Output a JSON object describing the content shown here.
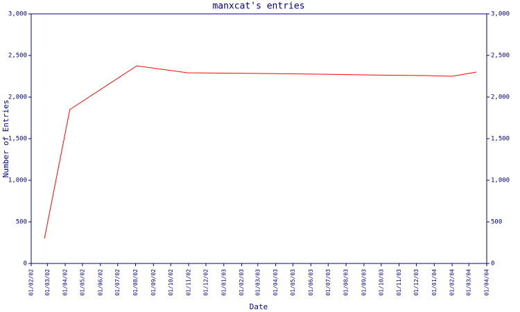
{
  "chart_data": {
    "type": "line",
    "title": "manxcat's entries",
    "x_label": "Date",
    "y_label": "Number of Entries",
    "x": [
      "2002-02-24",
      "2002-04-09",
      "2002-08-03",
      "2002-10-30",
      "2003-03-10",
      "2003-06-15",
      "2003-09-19",
      "2003-12-18",
      "2004-02-01",
      "2004-03-14"
    ],
    "series": [
      {
        "name": "manxcat",
        "color": "#ff0000",
        "values": [
          300,
          1850,
          2375,
          2292,
          2283,
          2275,
          2265,
          2258,
          2250,
          2300
        ]
      }
    ],
    "xlim": [
      "2002-02-01",
      "2004-04-01"
    ],
    "xticks": [
      {
        "value": "2002-02-01",
        "label": "01/02/02"
      },
      {
        "value": "2002-03-01",
        "label": "01/03/02"
      },
      {
        "value": "2002-04-01",
        "label": "01/04/02"
      },
      {
        "value": "2002-05-01",
        "label": "01/05/02"
      },
      {
        "value": "2002-06-01",
        "label": "01/06/02"
      },
      {
        "value": "2002-07-01",
        "label": "01/07/02"
      },
      {
        "value": "2002-08-01",
        "label": "01/08/02"
      },
      {
        "value": "2002-09-01",
        "label": "01/09/02"
      },
      {
        "value": "2002-10-01",
        "label": "01/10/02"
      },
      {
        "value": "2002-11-01",
        "label": "01/11/02"
      },
      {
        "value": "2002-12-01",
        "label": "01/12/02"
      },
      {
        "value": "2003-01-01",
        "label": "01/01/03"
      },
      {
        "value": "2003-02-01",
        "label": "01/02/03"
      },
      {
        "value": "2003-03-01",
        "label": "01/03/03"
      },
      {
        "value": "2003-04-01",
        "label": "01/04/03"
      },
      {
        "value": "2003-05-01",
        "label": "01/05/03"
      },
      {
        "value": "2003-06-01",
        "label": "01/06/03"
      },
      {
        "value": "2003-07-01",
        "label": "01/07/03"
      },
      {
        "value": "2003-08-01",
        "label": "01/08/03"
      },
      {
        "value": "2003-09-01",
        "label": "01/09/03"
      },
      {
        "value": "2003-10-01",
        "label": "01/10/03"
      },
      {
        "value": "2003-11-01",
        "label": "01/11/03"
      },
      {
        "value": "2003-12-01",
        "label": "01/12/03"
      },
      {
        "value": "2004-01-01",
        "label": "01/01/04"
      },
      {
        "value": "2004-02-01",
        "label": "01/02/04"
      },
      {
        "value": "2004-03-01",
        "label": "01/03/04"
      },
      {
        "value": "2004-04-01",
        "label": "01/04/04"
      }
    ],
    "ylim": [
      0,
      3000
    ],
    "yticks": [
      0,
      500,
      {
        "value": 1000,
        "label": "1,000"
      },
      {
        "value": 1500,
        "label": "1,500"
      },
      {
        "value": 2000,
        "label": "2,000"
      },
      {
        "value": 2500,
        "label": "2,500"
      },
      {
        "value": 3000,
        "label": "3,000"
      }
    ],
    "axis_color": "#000080"
  }
}
